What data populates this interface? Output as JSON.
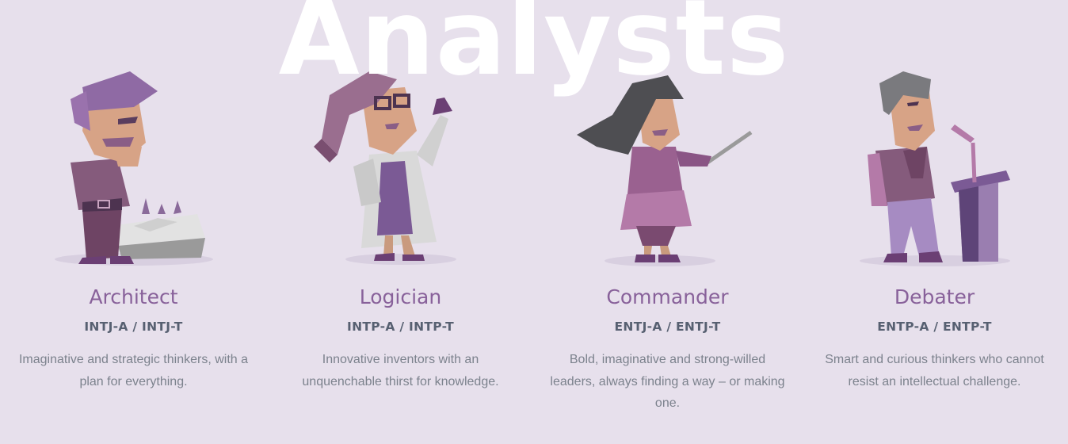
{
  "section": {
    "title": "Analysts"
  },
  "colors": {
    "background": "#e7e0ec",
    "title": "#ffffff",
    "name": "#88619a",
    "code": "#576071",
    "description": "#7c828d"
  },
  "personalities": [
    {
      "name": "Architect",
      "code": "INTJ-A / INTJ-T",
      "description": "Imaginative and strategic thinkers, with a plan for everything.",
      "illustration": "architect-illustration"
    },
    {
      "name": "Logician",
      "code": "INTP-A / INTP-T",
      "description": "Innovative inventors with an unquenchable thirst for knowledge.",
      "illustration": "logician-illustration"
    },
    {
      "name": "Commander",
      "code": "ENTJ-A / ENTJ-T",
      "description": "Bold, imaginative and strong-willed leaders, always finding a way – or making one.",
      "illustration": "commander-illustration"
    },
    {
      "name": "Debater",
      "code": "ENTP-A / ENTP-T",
      "description": "Smart and curious thinkers who cannot resist an intellectual challenge.",
      "illustration": "debater-illustration"
    }
  ]
}
